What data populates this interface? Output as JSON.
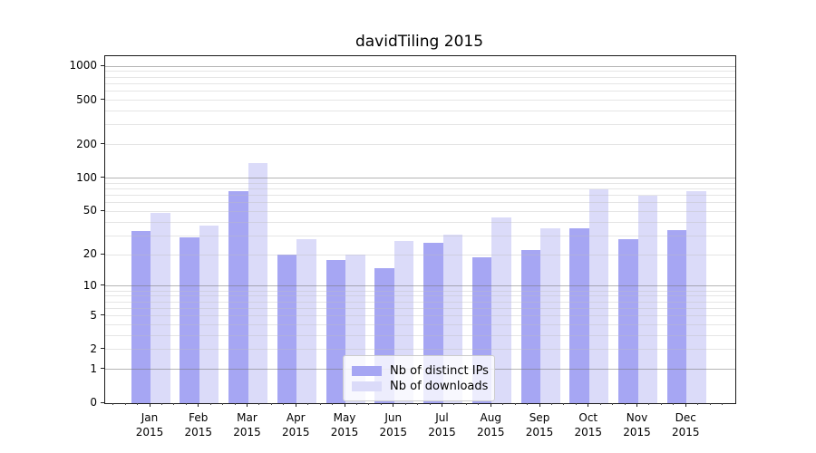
{
  "title": "davidTiling 2015",
  "chart_data": {
    "type": "bar",
    "title": "davidTiling 2015",
    "categories": [
      "Jan 2015",
      "Feb 2015",
      "Mar 2015",
      "Apr 2015",
      "May 2015",
      "Jun 2015",
      "Jul 2015",
      "Aug 2015",
      "Sep 2015",
      "Oct 2015",
      "Nov 2015",
      "Dec 2015"
    ],
    "series": [
      {
        "name": "Nb of distinct IPs",
        "color": "#a6a6f3",
        "values": [
          33,
          29,
          77,
          20,
          18,
          15,
          26,
          19,
          22,
          35,
          28,
          34
        ]
      },
      {
        "name": "Nb of downloads",
        "color": "#dbdbf9",
        "values": [
          49,
          37,
          137,
          28,
          20,
          27,
          31,
          44,
          35,
          80,
          70,
          77
        ]
      }
    ],
    "y_ticks": [
      0,
      1,
      2,
      5,
      10,
      20,
      50,
      100,
      200,
      500,
      1000
    ],
    "y_minor_gridlines": [
      2,
      3,
      4,
      5,
      6,
      7,
      8,
      9,
      20,
      30,
      40,
      50,
      60,
      70,
      80,
      90,
      200,
      300,
      400,
      500,
      600,
      700,
      800,
      900
    ],
    "y_major_gridlines": [
      1,
      10,
      100,
      1000
    ],
    "y_scale": "log1p",
    "ylim": [
      0,
      1233
    ],
    "grid": true,
    "legend_position": "lower center"
  },
  "colors": {
    "bar_dark": "#a6a6f3",
    "bar_light": "#dbdbf9",
    "major_grid": "#b5b5b5",
    "minor_grid": "#e5e5e5",
    "axis": "#1a1a1a"
  }
}
